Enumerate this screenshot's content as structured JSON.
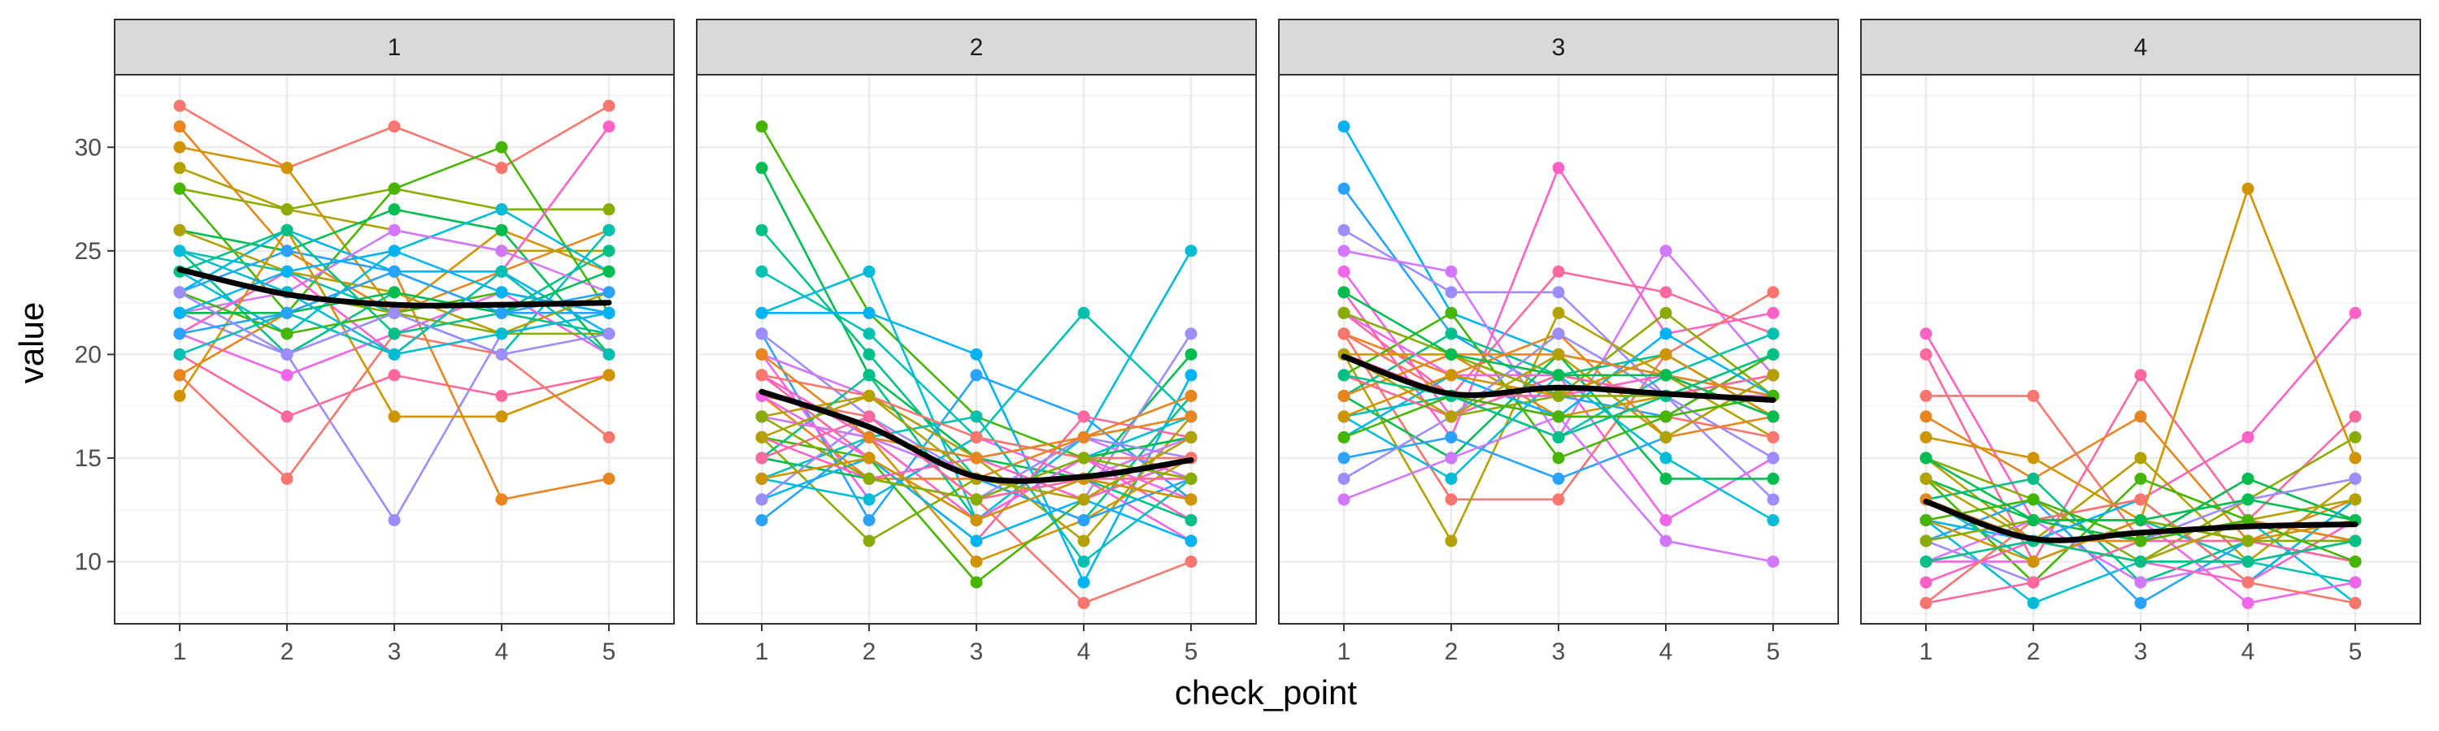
{
  "chart_data": {
    "type": "line",
    "facet_variable": "check_point",
    "xlabel": "check_point",
    "ylabel": "value",
    "x_ticks": [
      "1",
      "2",
      "3",
      "4",
      "5"
    ],
    "y_ticks": [
      10,
      15,
      20,
      25,
      30
    ],
    "ylim": [
      7,
      33.5
    ],
    "grid": true,
    "legend": "none",
    "trend_color": "#000000",
    "palette": [
      "#F8766D",
      "#E7851E",
      "#D09400",
      "#B2A100",
      "#89AC00",
      "#45B500",
      "#00BC51",
      "#00C087",
      "#00C0B2",
      "#00BCD6",
      "#00B3F2",
      "#29A3FF",
      "#9C8DFF",
      "#D277FF",
      "#F166E8",
      "#FF61C7",
      "#FF689E"
    ],
    "panels": [
      {
        "label": "1",
        "trend": [
          24.1,
          22.9,
          22.4,
          22.4,
          22.5
        ],
        "series": [
          [
            32,
            29,
            31,
            29,
            32
          ],
          [
            31,
            25,
            22,
            24,
            26
          ],
          [
            30,
            29,
            22,
            26,
            24
          ],
          [
            29,
            27,
            26,
            25,
            25
          ],
          [
            28,
            27,
            28,
            27,
            27
          ],
          [
            28,
            22,
            28,
            30,
            22
          ],
          [
            26,
            25,
            27,
            26,
            20
          ],
          [
            25,
            20,
            23,
            22,
            25
          ],
          [
            25,
            24,
            22,
            20,
            26
          ],
          [
            24,
            21,
            25,
            27,
            24
          ],
          [
            23,
            26,
            24,
            24,
            21
          ],
          [
            23,
            25,
            24,
            22,
            22
          ],
          [
            22,
            20,
            12,
            21,
            22
          ],
          [
            22,
            23,
            26,
            25,
            23
          ],
          [
            21,
            19,
            21,
            23,
            20
          ],
          [
            21,
            24,
            20,
            24,
            31
          ],
          [
            20,
            17,
            19,
            18,
            19
          ],
          [
            19,
            14,
            21,
            20,
            16
          ],
          [
            19,
            22,
            24,
            13,
            14
          ],
          [
            18,
            26,
            17,
            17,
            19
          ],
          [
            26,
            24,
            23,
            21,
            23
          ],
          [
            24,
            23,
            22,
            21,
            21
          ],
          [
            23,
            21,
            22,
            23,
            22
          ],
          [
            22,
            22,
            23,
            22,
            24
          ],
          [
            24,
            26,
            21,
            22,
            21
          ],
          [
            20,
            22,
            20,
            24,
            20
          ],
          [
            25,
            23,
            20,
            21,
            22
          ],
          [
            22,
            24,
            25,
            23,
            22
          ],
          [
            21,
            22,
            24,
            22,
            23
          ],
          [
            23,
            20,
            22,
            20,
            21
          ]
        ]
      },
      {
        "label": "2",
        "trend": [
          18.2,
          16.5,
          14.1,
          14.1,
          14.9
        ],
        "series": [
          [
            31,
            22,
            17,
            15,
            16
          ],
          [
            29,
            19,
            15,
            14,
            20
          ],
          [
            26,
            20,
            14,
            12,
            18
          ],
          [
            24,
            21,
            16,
            22,
            17
          ],
          [
            22,
            24,
            12,
            16,
            25
          ],
          [
            22,
            22,
            20,
            9,
            19
          ],
          [
            21,
            12,
            19,
            17,
            13
          ],
          [
            21,
            17,
            14,
            13,
            21
          ],
          [
            20,
            18,
            15,
            16,
            14
          ],
          [
            20,
            13,
            16,
            14,
            11
          ],
          [
            19,
            16,
            12,
            15,
            12
          ],
          [
            19,
            15,
            11,
            17,
            16
          ],
          [
            18,
            17,
            13,
            8,
            10
          ],
          [
            18,
            14,
            14,
            16,
            18
          ],
          [
            17,
            16,
            10,
            12,
            15
          ],
          [
            17,
            18,
            15,
            11,
            17
          ],
          [
            16,
            11,
            14,
            14,
            13
          ],
          [
            16,
            15,
            9,
            13,
            15
          ],
          [
            15,
            14,
            13,
            15,
            16
          ],
          [
            15,
            19,
            12,
            14,
            12
          ],
          [
            14,
            16,
            17,
            10,
            14
          ],
          [
            14,
            13,
            16,
            15,
            17
          ],
          [
            13,
            15,
            11,
            13,
            11
          ],
          [
            12,
            16,
            14,
            12,
            14
          ],
          [
            13,
            17,
            13,
            16,
            15
          ],
          [
            17,
            16,
            14,
            14,
            16
          ],
          [
            18,
            15,
            12,
            15,
            13
          ],
          [
            16,
            14,
            15,
            13,
            15
          ],
          [
            15,
            17,
            13,
            14,
            14
          ],
          [
            19,
            18,
            16,
            15,
            15
          ],
          [
            20,
            16,
            15,
            16,
            17
          ],
          [
            14,
            15,
            12,
            14,
            13
          ],
          [
            16,
            18,
            14,
            13,
            16
          ],
          [
            17,
            14,
            13,
            15,
            14
          ]
        ]
      },
      {
        "label": "3",
        "trend": [
          19.9,
          18.1,
          18.4,
          18.1,
          17.8
        ],
        "series": [
          [
            31,
            22,
            20,
            19,
            18
          ],
          [
            28,
            21,
            18,
            17,
            20
          ],
          [
            26,
            23,
            23,
            18,
            13
          ],
          [
            25,
            24,
            16,
            25,
            19
          ],
          [
            24,
            17,
            19,
            12,
            15
          ],
          [
            23,
            16,
            29,
            21,
            22
          ],
          [
            22,
            18,
            24,
            23,
            21
          ],
          [
            21,
            13,
            13,
            20,
            23
          ],
          [
            21,
            19,
            21,
            16,
            17
          ],
          [
            20,
            20,
            17,
            18,
            19
          ],
          [
            20,
            11,
            22,
            19,
            16
          ],
          [
            19,
            17,
            18,
            22,
            18
          ],
          [
            19,
            22,
            15,
            17,
            20
          ],
          [
            18,
            15,
            20,
            14,
            14
          ],
          [
            18,
            21,
            19,
            20,
            17
          ],
          [
            17,
            18,
            16,
            19,
            21
          ],
          [
            17,
            14,
            19,
            15,
            12
          ],
          [
            16,
            19,
            17,
            21,
            18
          ],
          [
            15,
            16,
            14,
            16,
            19
          ],
          [
            14,
            17,
            21,
            18,
            15
          ],
          [
            13,
            15,
            17,
            11,
            10
          ],
          [
            22,
            19,
            19,
            18,
            18
          ],
          [
            20,
            18,
            18,
            19,
            17
          ],
          [
            19,
            17,
            19,
            18,
            19
          ],
          [
            21,
            18,
            17,
            17,
            16
          ],
          [
            18,
            20,
            20,
            19,
            18
          ],
          [
            17,
            19,
            18,
            20,
            17
          ],
          [
            20,
            17,
            20,
            16,
            19
          ],
          [
            22,
            20,
            18,
            18,
            20
          ],
          [
            16,
            18,
            17,
            17,
            18
          ],
          [
            23,
            20,
            19,
            19,
            17
          ],
          [
            19,
            18,
            16,
            18,
            20
          ]
        ]
      },
      {
        "label": "4",
        "trend": [
          12.9,
          11.1,
          11.4,
          11.7,
          11.8
        ],
        "series": [
          [
            21,
            12,
            13,
            16,
            22
          ],
          [
            20,
            10,
            19,
            12,
            17
          ],
          [
            18,
            18,
            11,
            14,
            12
          ],
          [
            17,
            14,
            17,
            11,
            13
          ],
          [
            16,
            15,
            12,
            28,
            15
          ],
          [
            15,
            11,
            15,
            10,
            14
          ],
          [
            15,
            13,
            10,
            13,
            16
          ],
          [
            14,
            9,
            14,
            12,
            11
          ],
          [
            14,
            12,
            11,
            14,
            12
          ],
          [
            13,
            14,
            9,
            11,
            10
          ],
          [
            13,
            10,
            12,
            10,
            9
          ],
          [
            12,
            8,
            10,
            12,
            8
          ],
          [
            12,
            11,
            13,
            9,
            13
          ],
          [
            11,
            13,
            8,
            11,
            10
          ],
          [
            11,
            9,
            11,
            13,
            14
          ],
          [
            10,
            12,
            9,
            10,
            11
          ],
          [
            10,
            10,
            12,
            8,
            9
          ],
          [
            9,
            11,
            10,
            9,
            12
          ],
          [
            8,
            9,
            11,
            11,
            10
          ],
          [
            8,
            12,
            13,
            9,
            8
          ],
          [
            13,
            11,
            11,
            12,
            11
          ],
          [
            12,
            10,
            12,
            11,
            12
          ],
          [
            14,
            11,
            10,
            12,
            13
          ],
          [
            11,
            12,
            12,
            11,
            11
          ],
          [
            12,
            13,
            11,
            12,
            10
          ],
          [
            15,
            12,
            12,
            13,
            12
          ],
          [
            10,
            11,
            10,
            10,
            11
          ]
        ]
      }
    ]
  }
}
